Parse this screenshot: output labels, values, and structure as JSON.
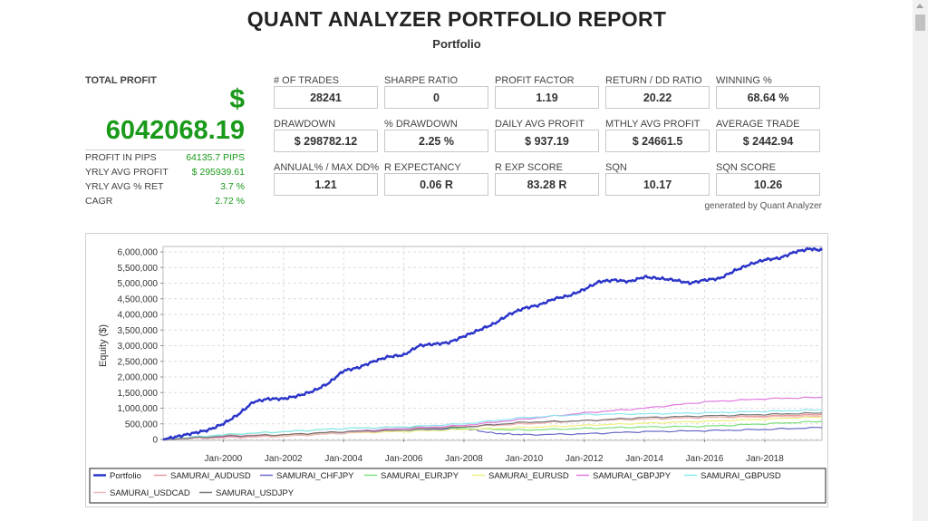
{
  "report": {
    "title": "QUANT ANALYZER PORTFOLIO REPORT",
    "subtitle": "Portfolio"
  },
  "total_profit": {
    "label": "TOTAL PROFIT",
    "currency": "$",
    "value": "6042068.19",
    "rows": [
      {
        "label": "PROFIT IN PIPS",
        "value": "64135.7 PIPS"
      },
      {
        "label": "YRLY AVG PROFIT",
        "value": "$ 295939.61"
      },
      {
        "label": "YRLY AVG % RET",
        "value": "3.7 %"
      },
      {
        "label": "CAGR",
        "value": "2.72 %"
      }
    ]
  },
  "metrics": [
    {
      "label": "# OF TRADES",
      "value": "28241"
    },
    {
      "label": "SHARPE RATIO",
      "value": "0"
    },
    {
      "label": "PROFIT FACTOR",
      "value": "1.19"
    },
    {
      "label": "RETURN / DD RATIO",
      "value": "20.22"
    },
    {
      "label": "WINNING %",
      "value": "68.64 %"
    },
    {
      "label": "DRAWDOWN",
      "value": "$ 298782.12"
    },
    {
      "label": "% DRAWDOWN",
      "value": "2.25 %"
    },
    {
      "label": "DAILY AVG PROFIT",
      "value": "$ 937.19"
    },
    {
      "label": "MTHLY AVG PROFIT",
      "value": "$ 24661.5"
    },
    {
      "label": "AVERAGE TRADE",
      "value": "$ 2442.94"
    },
    {
      "label": "ANNUAL% / MAX DD%",
      "value": "1.21"
    },
    {
      "label": "R EXPECTANCY",
      "value": "0.06 R"
    },
    {
      "label": "R EXP SCORE",
      "value": "83.28 R"
    },
    {
      "label": "SQN",
      "value": "10.17"
    },
    {
      "label": "SQN SCORE",
      "value": "10.26"
    }
  ],
  "generated_by": "generated by Quant Analyzer",
  "chart_data": {
    "type": "line",
    "ylabel": "Equity ($)",
    "xlabel": "",
    "ylim": [
      0,
      6000000
    ],
    "xlim": [
      1998,
      2019.9
    ],
    "y_ticks": [
      0,
      500000,
      1000000,
      1500000,
      2000000,
      2500000,
      3000000,
      3500000,
      4000000,
      4500000,
      5000000,
      5500000,
      6000000
    ],
    "y_tick_labels": [
      "0",
      "500,000",
      "1,000,000",
      "1,500,000",
      "2,000,000",
      "2,500,000",
      "3,000,000",
      "3,500,000",
      "4,000,000",
      "4,500,000",
      "5,000,000",
      "5,500,000",
      "6,000,000"
    ],
    "x_ticks": [
      2000,
      2002,
      2004,
      2006,
      2008,
      2010,
      2012,
      2014,
      2016,
      2018
    ],
    "x_tick_labels": [
      "Jan-2000",
      "Jan-2002",
      "Jan-2004",
      "Jan-2006",
      "Jan-2008",
      "Jan-2010",
      "Jan-2012",
      "Jan-2014",
      "Jan-2016",
      "Jan-2018"
    ],
    "grid": true,
    "legend_position": "bottom",
    "series": [
      {
        "name": "Portfolio",
        "color": "#2b35c8",
        "width": 2.5,
        "x": [
          1998.0,
          1998.5,
          1999.0,
          1999.5,
          2000.0,
          2000.5,
          2001.0,
          2001.5,
          2002.0,
          2002.5,
          2003.0,
          2003.5,
          2004.0,
          2004.5,
          2005.0,
          2005.5,
          2006.0,
          2006.5,
          2007.0,
          2007.5,
          2008.0,
          2008.5,
          2009.0,
          2009.5,
          2010.0,
          2010.5,
          2011.0,
          2011.5,
          2012.0,
          2012.5,
          2013.0,
          2013.5,
          2014.0,
          2014.5,
          2015.0,
          2015.5,
          2016.0,
          2016.5,
          2017.0,
          2017.5,
          2018.0,
          2018.5,
          2019.0,
          2019.5,
          2019.9
        ],
        "y": [
          0,
          100000,
          200000,
          300000,
          500000,
          800000,
          1200000,
          1300000,
          1300000,
          1400000,
          1550000,
          1800000,
          2200000,
          2300000,
          2500000,
          2650000,
          2700000,
          3000000,
          3050000,
          3100000,
          3300000,
          3500000,
          3700000,
          4000000,
          4200000,
          4300000,
          4500000,
          4600000,
          4800000,
          5050000,
          5100000,
          5050000,
          5200000,
          5150000,
          5100000,
          5000000,
          5100000,
          5150000,
          5400000,
          5600000,
          5750000,
          5800000,
          6000000,
          6100000,
          6050000
        ]
      },
      {
        "name": "SAMURAI_AUDUSD",
        "color": "#e89a9a",
        "width": 1.2,
        "x": [
          1998,
          2000,
          2002,
          2004,
          2006,
          2008,
          2010,
          2012,
          2014,
          2016,
          2018,
          2019.9
        ],
        "y": [
          0,
          120000,
          150000,
          250000,
          350000,
          400000,
          500000,
          600000,
          650000,
          700000,
          750000,
          800000
        ]
      },
      {
        "name": "SAMURAI_CHFJPY",
        "color": "#6a6ac8",
        "width": 1.2,
        "x": [
          1998,
          2000,
          2002,
          2004,
          2006,
          2008,
          2009,
          2010,
          2012,
          2014,
          2016,
          2018,
          2019.9
        ],
        "y": [
          0,
          80000,
          120000,
          200000,
          300000,
          350000,
          200000,
          150000,
          180000,
          250000,
          280000,
          320000,
          380000
        ]
      },
      {
        "name": "SAMURAI_EURJPY",
        "color": "#7ddf7d",
        "width": 1.2,
        "x": [
          1998,
          2000,
          2002,
          2004,
          2006,
          2008,
          2010,
          2012,
          2014,
          2016,
          2018,
          2019.9
        ],
        "y": [
          0,
          150000,
          250000,
          350000,
          400000,
          350000,
          300000,
          350000,
          400000,
          420000,
          500000,
          580000
        ]
      },
      {
        "name": "SAMURAI_EURUSD",
        "color": "#f0f080",
        "width": 1.2,
        "x": [
          1998,
          2000,
          2002,
          2004,
          2006,
          2008,
          2010,
          2012,
          2014,
          2016,
          2018,
          2019.9
        ],
        "y": [
          0,
          80000,
          120000,
          200000,
          250000,
          320000,
          380000,
          450000,
          520000,
          580000,
          650000,
          720000
        ]
      },
      {
        "name": "SAMURAI_GBPJPY",
        "color": "#e07ae0",
        "width": 1.2,
        "x": [
          1998,
          2000,
          2002,
          2004,
          2006,
          2008,
          2010,
          2012,
          2014,
          2016,
          2018,
          2019.9
        ],
        "y": [
          0,
          80000,
          150000,
          250000,
          350000,
          450000,
          650000,
          850000,
          1000000,
          1200000,
          1300000,
          1350000
        ]
      },
      {
        "name": "SAMURAI_GBPUSD",
        "color": "#8ae8ee",
        "width": 1.2,
        "x": [
          1998,
          2000,
          2002,
          2004,
          2006,
          2008,
          2010,
          2012,
          2014,
          2016,
          2018,
          2019.9
        ],
        "y": [
          0,
          150000,
          250000,
          350000,
          400000,
          500000,
          700000,
          800000,
          820000,
          850000,
          900000,
          950000
        ]
      },
      {
        "name": "SAMURAI_USDCAD",
        "color": "#f0b8b8",
        "width": 1.2,
        "x": [
          1998,
          2000,
          2002,
          2004,
          2006,
          2008,
          2010,
          2012,
          2014,
          2016,
          2018,
          2019.9
        ],
        "y": [
          0,
          50000,
          100000,
          200000,
          300000,
          420000,
          500000,
          600000,
          650000,
          700000,
          720000,
          750000
        ]
      },
      {
        "name": "SAMURAI_USDJPY",
        "color": "#777777",
        "width": 1.2,
        "x": [
          1998,
          2000,
          2002,
          2004,
          2006,
          2008,
          2010,
          2012,
          2014,
          2016,
          2018,
          2019.9
        ],
        "y": [
          0,
          100000,
          150000,
          250000,
          300000,
          400000,
          550000,
          600000,
          700000,
          750000,
          800000,
          850000
        ]
      }
    ]
  }
}
